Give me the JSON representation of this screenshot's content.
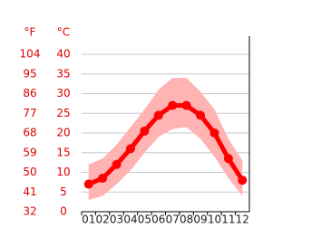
{
  "chart_data": {
    "type": "line",
    "y_unit_label": "°C",
    "y2_unit_label": "°F",
    "categories": [
      "01",
      "02",
      "03",
      "04",
      "05",
      "06",
      "07",
      "08",
      "09",
      "10",
      "11",
      "12"
    ],
    "values": [
      7,
      8.5,
      12,
      16,
      20.5,
      24.5,
      27,
      27,
      24.5,
      20,
      13.5,
      8
    ],
    "band_upper": [
      12,
      13.5,
      17,
      21.5,
      26,
      31,
      34,
      34,
      30.5,
      26,
      18.5,
      13
    ],
    "band_lower": [
      3,
      4,
      7,
      10.5,
      15,
      19,
      21,
      21.5,
      18.5,
      14,
      8.5,
      4
    ],
    "color": "#ff0000",
    "band_color": "#ffb3b3",
    "ylim": [
      0,
      40
    ],
    "yticks": [
      0,
      5,
      10,
      15,
      20,
      25,
      30,
      35,
      40
    ],
    "y2lim": [
      32,
      104
    ],
    "y2ticks": [
      32,
      41,
      50,
      59,
      68,
      77,
      86,
      95,
      104
    ],
    "grid": true
  }
}
